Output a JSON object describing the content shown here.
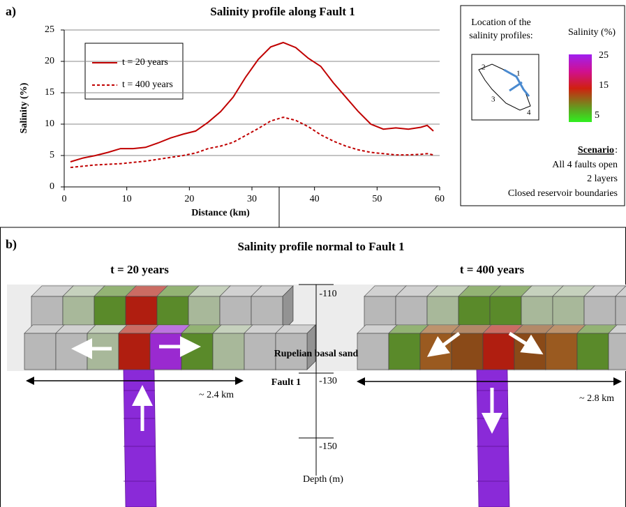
{
  "chart_data": {
    "type": "line",
    "panel": "a)",
    "title": "Salinity profile along Fault 1",
    "xlabel": "Distance (km)",
    "ylabel": "Salinity (%)",
    "x": [
      1,
      3,
      5,
      7,
      9,
      11,
      13,
      15,
      17,
      19,
      21,
      23,
      25,
      27,
      29,
      31,
      33,
      35,
      37,
      39,
      41,
      43,
      45,
      47,
      49,
      51,
      53,
      55,
      57,
      58,
      59
    ],
    "series": [
      {
        "name": "t = 20 years",
        "color": "#c00000",
        "style": "solid",
        "values": [
          4.0,
          4.6,
          5.0,
          5.5,
          6.1,
          6.1,
          6.3,
          7.0,
          7.8,
          8.4,
          8.9,
          10.3,
          12.0,
          14.3,
          17.5,
          20.3,
          22.3,
          23.0,
          22.2,
          20.5,
          19.2,
          16.6,
          14.3,
          12.0,
          10.0,
          9.2,
          9.4,
          9.2,
          9.5,
          9.8,
          8.9
        ]
      },
      {
        "name": "t = 400 years",
        "color": "#c00000",
        "style": "dashed",
        "values": [
          3.1,
          3.3,
          3.5,
          3.6,
          3.7,
          3.9,
          4.1,
          4.4,
          4.7,
          5.0,
          5.4,
          6.1,
          6.5,
          7.1,
          8.2,
          9.3,
          10.5,
          11.1,
          10.6,
          9.6,
          8.3,
          7.3,
          6.5,
          5.9,
          5.5,
          5.3,
          5.1,
          5.1,
          5.2,
          5.3,
          5.1
        ]
      }
    ],
    "xlim": [
      0,
      60
    ],
    "xticks": [
      0,
      10,
      20,
      30,
      40,
      50,
      60
    ],
    "ylim": [
      0,
      25
    ],
    "yticks": [
      0,
      5,
      10,
      15,
      20,
      25
    ],
    "grid": true
  },
  "info_box": {
    "location_title": [
      "Location of the",
      "salinity profiles:"
    ],
    "map_labels": [
      "1",
      "2",
      "3",
      "4"
    ],
    "colorbar_title": "Salinity (%)",
    "colorbar_labels": [
      "25",
      "15",
      "5"
    ],
    "scenario_title": "Scenario",
    "scenario_colon": ":",
    "scenario_lines": [
      "All 4 faults open",
      "2 layers",
      "Closed reservoir boundaries"
    ]
  },
  "panel_b": {
    "label": "b)",
    "title": "Salinity profile normal to Fault 1",
    "left_title": "t = 20 years",
    "right_title": "t = 400 years",
    "layer": "Rupelian basal sand",
    "fault": "Fault 1",
    "depth_ticks": [
      "-110",
      "-130",
      "-150"
    ],
    "depth_label": "Depth (m)",
    "left_width": "~ 2.4 km",
    "right_width": "~ 2.8 km"
  }
}
